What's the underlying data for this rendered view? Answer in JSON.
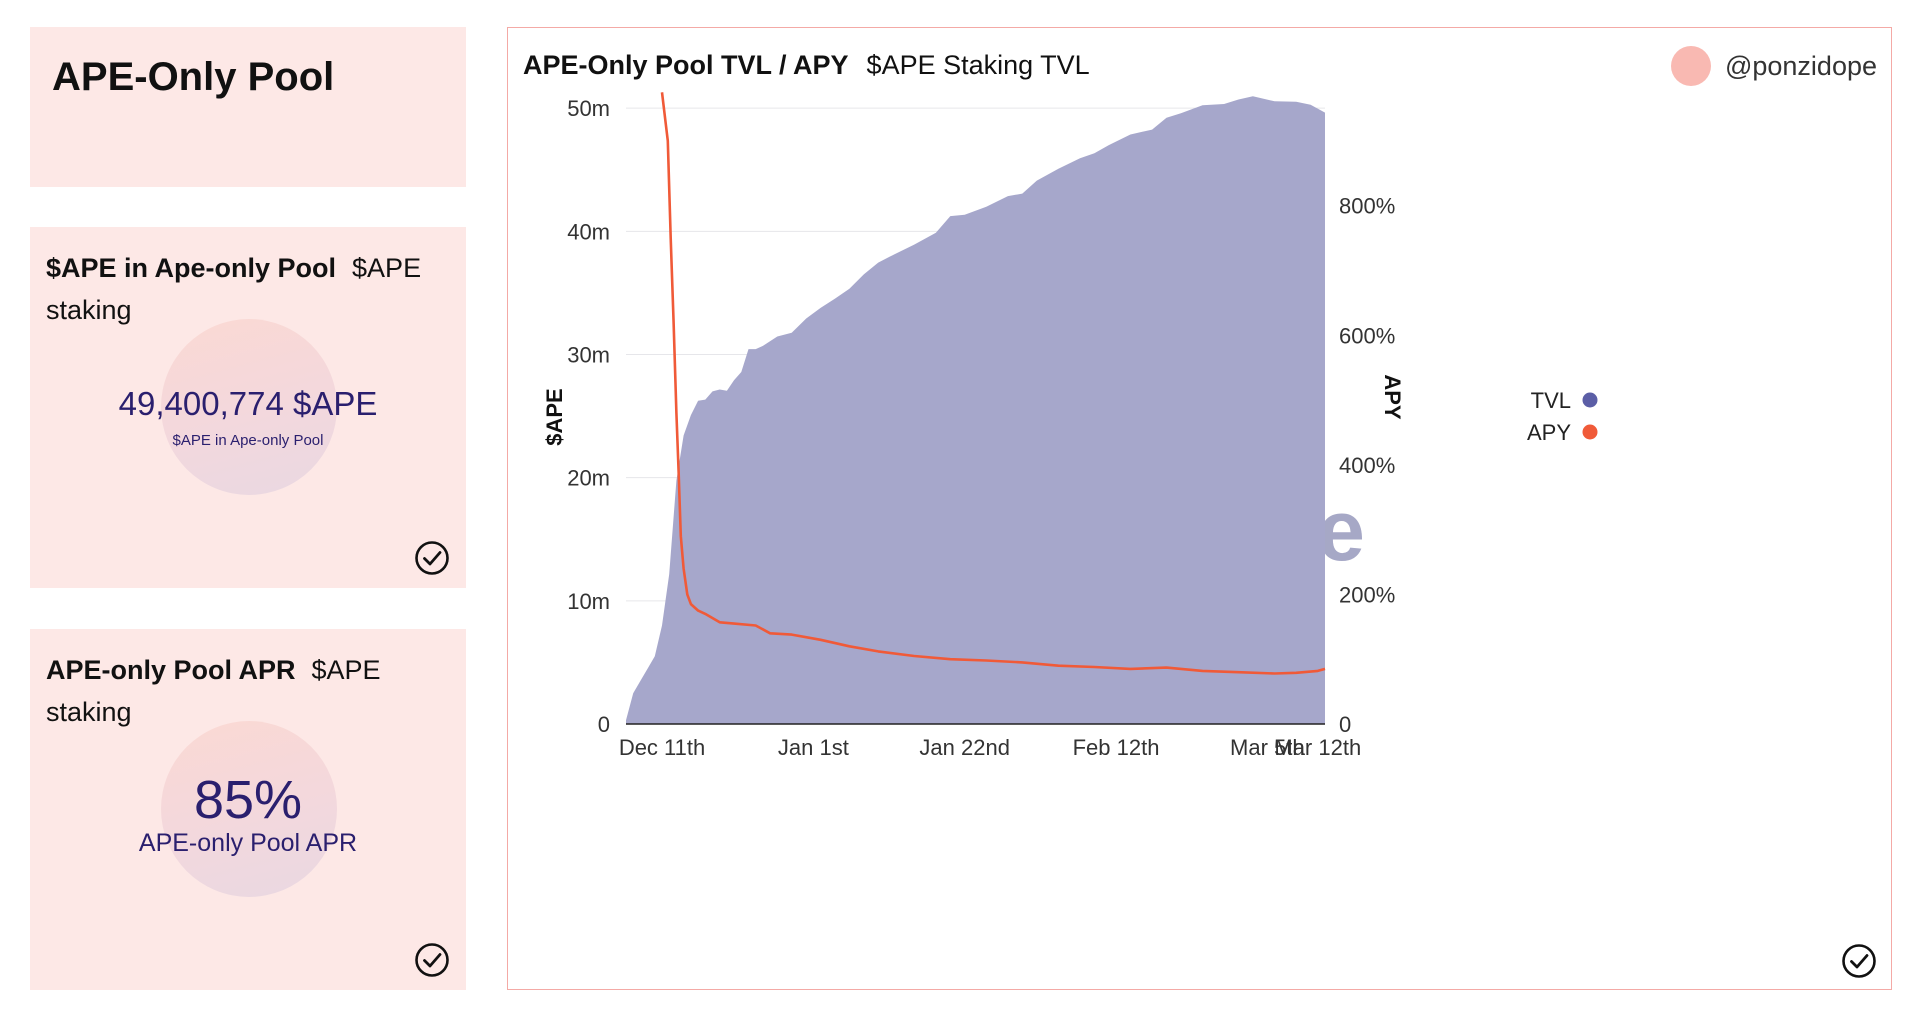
{
  "title_card": {
    "title": "APE-Only Pool"
  },
  "counter_card": {
    "title": "$APE in Ape-only Pool",
    "subtitle": "$APE staking",
    "value": "49,400,774 $APE",
    "value_label": "$APE in Ape-only Pool"
  },
  "apr_card": {
    "title": "APE-only Pool APR",
    "subtitle": "$APE staking",
    "value": "85%",
    "value_label": "APE-only Pool APR"
  },
  "chart_card": {
    "title": "APE-Only Pool TVL / APY",
    "subtitle": "$APE Staking TVL",
    "author": "@ponzidope",
    "watermark": "Dune"
  },
  "colors": {
    "tvl": "#a6a7cb",
    "tvl_legend": "#5b5ea6",
    "apy": "#f05a38",
    "card_bg": "#fde8e6",
    "accent_text": "#2a1f6e"
  },
  "chart_data": {
    "type": "area+line",
    "title": "APE-Only Pool TVL / APY",
    "ylabel_left": "$APE",
    "ylabel_right": "APY",
    "x_ticks": [
      "Dec 11th",
      "Jan 1st",
      "Jan 22nd",
      "Feb 12th",
      "Mar 5th",
      "Mar 12th"
    ],
    "x_tick_days": [
      0,
      21,
      42,
      63,
      84,
      91
    ],
    "x_range_days": [
      -5,
      92
    ],
    "y_left_ticks": [
      "0",
      "10m",
      "20m",
      "30m",
      "40m",
      "50m"
    ],
    "y_left_values": [
      0,
      10,
      20,
      30,
      40,
      50
    ],
    "y_left_range": [
      0,
      50.5
    ],
    "y_right_ticks": [
      "0",
      "200%",
      "400%",
      "600%",
      "800%"
    ],
    "y_right_values": [
      0,
      200,
      400,
      600,
      800
    ],
    "y_right_range": [
      0,
      960
    ],
    "legend": [
      "TVL",
      "APY"
    ],
    "legend_position": "right",
    "series": [
      {
        "name": "TVL",
        "type": "area",
        "unit": "million $APE",
        "x_days": [
          -5,
          -4,
          -3,
          -2,
          -1,
          0,
          1,
          2,
          3,
          4,
          5,
          6,
          7,
          8,
          9,
          10,
          11,
          12,
          13,
          14,
          16,
          18,
          20,
          22,
          24,
          26,
          28,
          30,
          32,
          35,
          38,
          40,
          42,
          45,
          48,
          50,
          52,
          55,
          58,
          60,
          62,
          65,
          68,
          70,
          72,
          75,
          78,
          80,
          82,
          85,
          88,
          90,
          92
        ],
        "values": [
          0.3,
          2.5,
          3.5,
          4.5,
          5.5,
          8.0,
          12.0,
          20.0,
          23.5,
          25.0,
          26.0,
          26.5,
          27.0,
          27.0,
          27.3,
          28.0,
          28.5,
          30.2,
          30.6,
          30.7,
          31.3,
          32.0,
          33.0,
          33.7,
          34.3,
          35.5,
          36.5,
          37.3,
          38.3,
          39.0,
          39.8,
          41.0,
          41.5,
          42.0,
          42.7,
          43.3,
          44.2,
          45.0,
          45.7,
          46.5,
          47.0,
          47.7,
          48.5,
          49.3,
          49.5,
          50.0,
          50.5,
          50.7,
          50.8,
          50.8,
          50.6,
          50.2,
          49.4
        ]
      },
      {
        "name": "APY",
        "type": "line",
        "unit": "%",
        "x_days": [
          0,
          0.8,
          1.2,
          1.6,
          2.0,
          2.3,
          2.6,
          3.0,
          3.5,
          4.0,
          5.0,
          6.0,
          8.0,
          10.0,
          13.0,
          15.0,
          18.0,
          22.0,
          26.0,
          30.0,
          35.0,
          40.0,
          45.0,
          50.0,
          55.0,
          60.0,
          65.0,
          70.0,
          75.0,
          80.0,
          85.0,
          88.0,
          91.0,
          92.0
        ],
        "values": [
          975,
          900,
          750,
          620,
          480,
          390,
          290,
          240,
          200,
          185,
          175,
          170,
          157,
          155,
          152,
          140,
          138,
          130,
          120,
          112,
          105,
          100,
          98,
          95,
          90,
          88,
          85,
          87,
          82,
          80,
          78,
          79,
          82,
          85
        ]
      }
    ]
  }
}
